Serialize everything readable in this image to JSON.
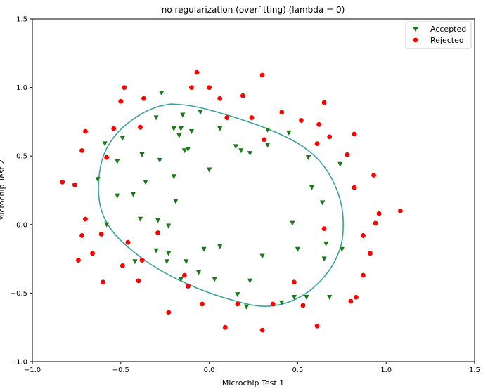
{
  "chart_data": {
    "type": "scatter",
    "title": "no regularization (overfitting) (lambda = 0)",
    "xlabel": "Microchip Test 1",
    "ylabel": "Microchip Test 2",
    "xlim": [
      -1.0,
      1.5
    ],
    "ylim": [
      -1.0,
      1.5
    ],
    "xticks": [
      -1.0,
      -0.5,
      0.0,
      0.5,
      1.0,
      1.5
    ],
    "yticks": [
      -1.0,
      -0.5,
      0.0,
      0.5,
      1.0,
      1.5
    ],
    "xtick_labels": [
      "−1.0",
      "−0.5",
      "0.0",
      "0.5",
      "1.0",
      "1.5"
    ],
    "ytick_labels": [
      "−1.0",
      "−0.5",
      "0.0",
      "0.5",
      "1.0",
      "1.5"
    ],
    "grid": false,
    "legend": {
      "placement": "top-right",
      "entries": [
        "Accepted",
        "Rejected"
      ]
    },
    "colors": {
      "accepted": "#1a7a1a",
      "rejected": "#ff0000",
      "boundary": "#3aa0a0"
    },
    "series": [
      {
        "name": "Accepted",
        "marker": "triangle-down",
        "points": [
          [
            -0.27,
            0.96
          ],
          [
            -0.15,
            0.8
          ],
          [
            -0.05,
            0.82
          ],
          [
            -0.3,
            0.78
          ],
          [
            -0.1,
            0.68
          ],
          [
            -0.2,
            0.7
          ],
          [
            -0.16,
            0.7
          ],
          [
            -0.17,
            0.65
          ],
          [
            -0.49,
            0.63
          ],
          [
            -0.59,
            0.59
          ],
          [
            -0.38,
            0.51
          ],
          [
            -0.12,
            0.55
          ],
          [
            -0.14,
            0.54
          ],
          [
            0.06,
            0.7
          ],
          [
            0.15,
            0.57
          ],
          [
            0.18,
            0.54
          ],
          [
            0.23,
            0.52
          ],
          [
            0.33,
            0.69
          ],
          [
            0.33,
            0.58
          ],
          [
            0.45,
            0.67
          ],
          [
            0.56,
            0.49
          ],
          [
            0.74,
            0.44
          ],
          [
            0.58,
            0.27
          ],
          [
            0.64,
            0.16
          ],
          [
            -0.52,
            0.46
          ],
          [
            -0.28,
            0.47
          ],
          [
            -0.2,
            0.35
          ],
          [
            0.0,
            0.4
          ],
          [
            -0.63,
            0.33
          ],
          [
            -0.36,
            0.31
          ],
          [
            -0.52,
            0.21
          ],
          [
            -0.43,
            0.22
          ],
          [
            -0.19,
            0.17
          ],
          [
            -0.39,
            0.04
          ],
          [
            -0.58,
            0.0
          ],
          [
            -0.29,
            0.03
          ],
          [
            -0.23,
            -0.01
          ],
          [
            0.47,
            0.01
          ],
          [
            0.06,
            -0.16
          ],
          [
            -0.03,
            -0.18
          ],
          [
            -0.3,
            -0.19
          ],
          [
            -0.23,
            -0.21
          ],
          [
            0.5,
            -0.18
          ],
          [
            0.66,
            -0.14
          ],
          [
            0.75,
            -0.18
          ],
          [
            -0.42,
            -0.27
          ],
          [
            -0.24,
            -0.27
          ],
          [
            0.3,
            -0.23
          ],
          [
            0.65,
            -0.25
          ],
          [
            -0.13,
            -0.27
          ],
          [
            -0.06,
            -0.35
          ],
          [
            -0.16,
            -0.4
          ],
          [
            0.03,
            -0.4
          ],
          [
            0.23,
            -0.41
          ],
          [
            0.16,
            -0.51
          ],
          [
            0.41,
            -0.57
          ],
          [
            0.21,
            -0.6
          ],
          [
            0.48,
            -0.53
          ],
          [
            0.55,
            -0.53
          ],
          [
            0.68,
            -0.53
          ]
        ]
      },
      {
        "name": "Rejected",
        "marker": "circle",
        "points": [
          [
            -0.07,
            1.11
          ],
          [
            0.3,
            1.09
          ],
          [
            -0.48,
            1.0
          ],
          [
            -0.1,
            1.0
          ],
          [
            0.0,
            1.0
          ],
          [
            -0.5,
            0.9
          ],
          [
            -0.37,
            0.92
          ],
          [
            0.06,
            0.92
          ],
          [
            0.19,
            0.94
          ],
          [
            0.65,
            0.89
          ],
          [
            0.41,
            0.82
          ],
          [
            0.52,
            0.76
          ],
          [
            0.24,
            0.78
          ],
          [
            0.1,
            0.78
          ],
          [
            0.62,
            0.73
          ],
          [
            -0.7,
            0.68
          ],
          [
            -0.54,
            0.7
          ],
          [
            -0.39,
            0.71
          ],
          [
            0.68,
            0.64
          ],
          [
            0.82,
            0.66
          ],
          [
            0.31,
            0.62
          ],
          [
            0.61,
            0.59
          ],
          [
            -0.72,
            0.54
          ],
          [
            -0.58,
            0.49
          ],
          [
            0.78,
            0.51
          ],
          [
            -0.83,
            0.31
          ],
          [
            -0.76,
            0.29
          ],
          [
            0.93,
            0.36
          ],
          [
            0.82,
            0.27
          ],
          [
            1.08,
            0.1
          ],
          [
            0.96,
            0.08
          ],
          [
            -0.7,
            0.04
          ],
          [
            0.94,
            0.01
          ],
          [
            0.65,
            -0.03
          ],
          [
            -0.29,
            -0.06
          ],
          [
            -0.72,
            -0.08
          ],
          [
            -0.61,
            -0.07
          ],
          [
            0.87,
            -0.08
          ],
          [
            -0.46,
            -0.13
          ],
          [
            -0.66,
            -0.21
          ],
          [
            0.91,
            -0.21
          ],
          [
            -0.74,
            -0.26
          ],
          [
            -0.38,
            -0.26
          ],
          [
            -0.49,
            -0.3
          ],
          [
            -0.14,
            -0.37
          ],
          [
            0.87,
            -0.37
          ],
          [
            -0.4,
            -0.41
          ],
          [
            -0.6,
            -0.42
          ],
          [
            0.48,
            -0.42
          ],
          [
            -0.12,
            -0.45
          ],
          [
            0.83,
            -0.53
          ],
          [
            0.8,
            -0.56
          ],
          [
            -0.04,
            -0.58
          ],
          [
            0.16,
            -0.58
          ],
          [
            0.36,
            -0.58
          ],
          [
            0.53,
            -0.59
          ],
          [
            -0.23,
            -0.64
          ],
          [
            0.61,
            -0.74
          ],
          [
            0.09,
            -0.75
          ],
          [
            0.3,
            -0.77
          ]
        ]
      }
    ],
    "decision_boundary": {
      "color": "#3aa0a0",
      "points": [
        [
          -0.22,
          0.88
        ],
        [
          -0.1,
          0.87
        ],
        [
          0.05,
          0.82
        ],
        [
          0.2,
          0.76
        ],
        [
          0.35,
          0.69
        ],
        [
          0.5,
          0.6
        ],
        [
          0.62,
          0.48
        ],
        [
          0.7,
          0.33
        ],
        [
          0.75,
          0.15
        ],
        [
          0.76,
          0.0
        ],
        [
          0.75,
          -0.15
        ],
        [
          0.7,
          -0.3
        ],
        [
          0.62,
          -0.43
        ],
        [
          0.52,
          -0.53
        ],
        [
          0.4,
          -0.59
        ],
        [
          0.28,
          -0.6
        ],
        [
          0.15,
          -0.56
        ],
        [
          0.0,
          -0.5
        ],
        [
          -0.15,
          -0.42
        ],
        [
          -0.3,
          -0.32
        ],
        [
          -0.45,
          -0.18
        ],
        [
          -0.56,
          -0.04
        ],
        [
          -0.62,
          0.12
        ],
        [
          -0.63,
          0.32
        ],
        [
          -0.6,
          0.52
        ],
        [
          -0.52,
          0.68
        ],
        [
          -0.4,
          0.8
        ],
        [
          -0.3,
          0.86
        ],
        [
          -0.22,
          0.88
        ]
      ]
    }
  }
}
